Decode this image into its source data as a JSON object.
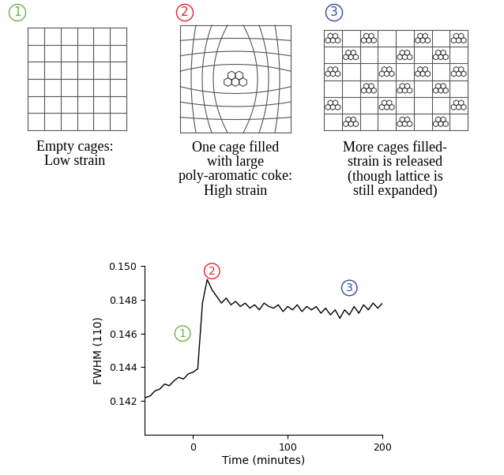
{
  "panels": [
    {
      "number": "1",
      "color": "#6ab04c",
      "caption": "Empty cages:\nLow strain"
    },
    {
      "number": "2",
      "color": "#e8232a",
      "caption": "One cage filled\nwith large\npoly-aromatic coke:\nHigh strain"
    },
    {
      "number": "3",
      "color": "#2e4a9e",
      "caption": "More cages filled-\nstrain is released\n(though lattice is\nstill expanded)"
    }
  ],
  "chart_data": {
    "type": "line",
    "color": "#000000",
    "xlabel": "Time (minutes)",
    "ylabel": "FWHM (110)",
    "x": [
      -50,
      -45,
      -40,
      -35,
      -30,
      -25,
      -20,
      -15,
      -10,
      -5,
      0,
      5,
      10,
      15,
      20,
      25,
      30,
      35,
      40,
      45,
      50,
      55,
      60,
      65,
      70,
      75,
      80,
      85,
      90,
      95,
      100,
      105,
      110,
      115,
      120,
      125,
      130,
      135,
      140,
      145,
      150,
      155,
      160,
      165,
      170,
      175,
      180,
      185,
      190,
      195,
      200
    ],
    "values": [
      0.1422,
      0.1423,
      0.1426,
      0.1427,
      0.143,
      0.1429,
      0.1432,
      0.1434,
      0.1433,
      0.1436,
      0.1437,
      0.1439,
      0.1478,
      0.1492,
      0.1486,
      0.1482,
      0.1478,
      0.1481,
      0.1477,
      0.1479,
      0.1476,
      0.1478,
      0.1475,
      0.1477,
      0.1474,
      0.1478,
      0.1476,
      0.1475,
      0.1477,
      0.1473,
      0.1476,
      0.1474,
      0.1477,
      0.1473,
      0.1476,
      0.1474,
      0.1476,
      0.1472,
      0.1475,
      0.1471,
      0.1474,
      0.1469,
      0.1474,
      0.1471,
      0.1476,
      0.1472,
      0.1477,
      0.1474,
      0.1478,
      0.1475,
      0.1478
    ],
    "xlim": [
      -51,
      200
    ],
    "xticks": [
      0,
      100,
      200
    ],
    "ylim": [
      0.14,
      0.15
    ],
    "yticks": [
      0.142,
      0.144,
      0.146,
      0.148,
      {
        "value": 0.15,
        "label": "0.150"
      }
    ],
    "annotations": [
      {
        "text": "1",
        "x": -11,
        "y": 0.146,
        "color": "#6ab04c"
      },
      {
        "text": "2",
        "x": 20,
        "y": 0.1497,
        "color": "#e8232a"
      },
      {
        "text": "3",
        "x": 165,
        "y": 0.1487,
        "color": "#2e4a9e"
      }
    ]
  }
}
